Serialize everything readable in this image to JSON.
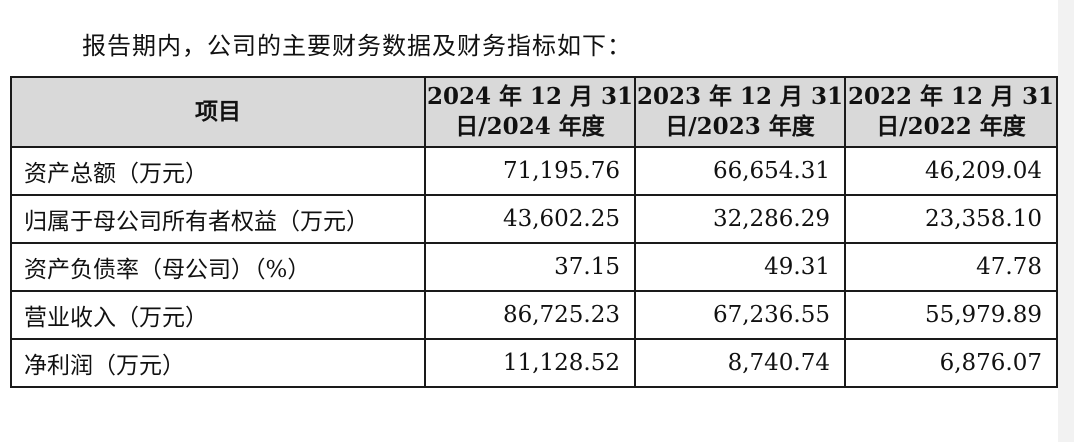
{
  "intro_text": "报告期内，公司的主要财务数据及财务指标如下：",
  "table": {
    "header": {
      "item": "项目",
      "col_2024_line1": "2024 年 12 月 31",
      "col_2024_line2": "日/2024 年度",
      "col_2023_line1": "2023 年 12 月 31",
      "col_2023_line2": "日/2023 年度",
      "col_2022_line1": "2022 年 12 月 31",
      "col_2022_line2": "日/2022 年度"
    },
    "rows": [
      {
        "label": "资产总额（万元）",
        "v2024": "71,195.76",
        "v2023": "66,654.31",
        "v2022": "46,209.04"
      },
      {
        "label": "归属于母公司所有者权益（万元）",
        "v2024": "43,602.25",
        "v2023": "32,286.29",
        "v2022": "23,358.10"
      },
      {
        "label": "资产负债率（母公司）（%）",
        "v2024": "37.15",
        "v2023": "49.31",
        "v2022": "47.78"
      },
      {
        "label": "营业收入（万元）",
        "v2024": "86,725.23",
        "v2023": "67,236.55",
        "v2022": "55,979.89"
      },
      {
        "label": "净利润（万元）",
        "v2024": "11,128.52",
        "v2023": "8,740.74",
        "v2022": "6,876.07"
      }
    ]
  }
}
